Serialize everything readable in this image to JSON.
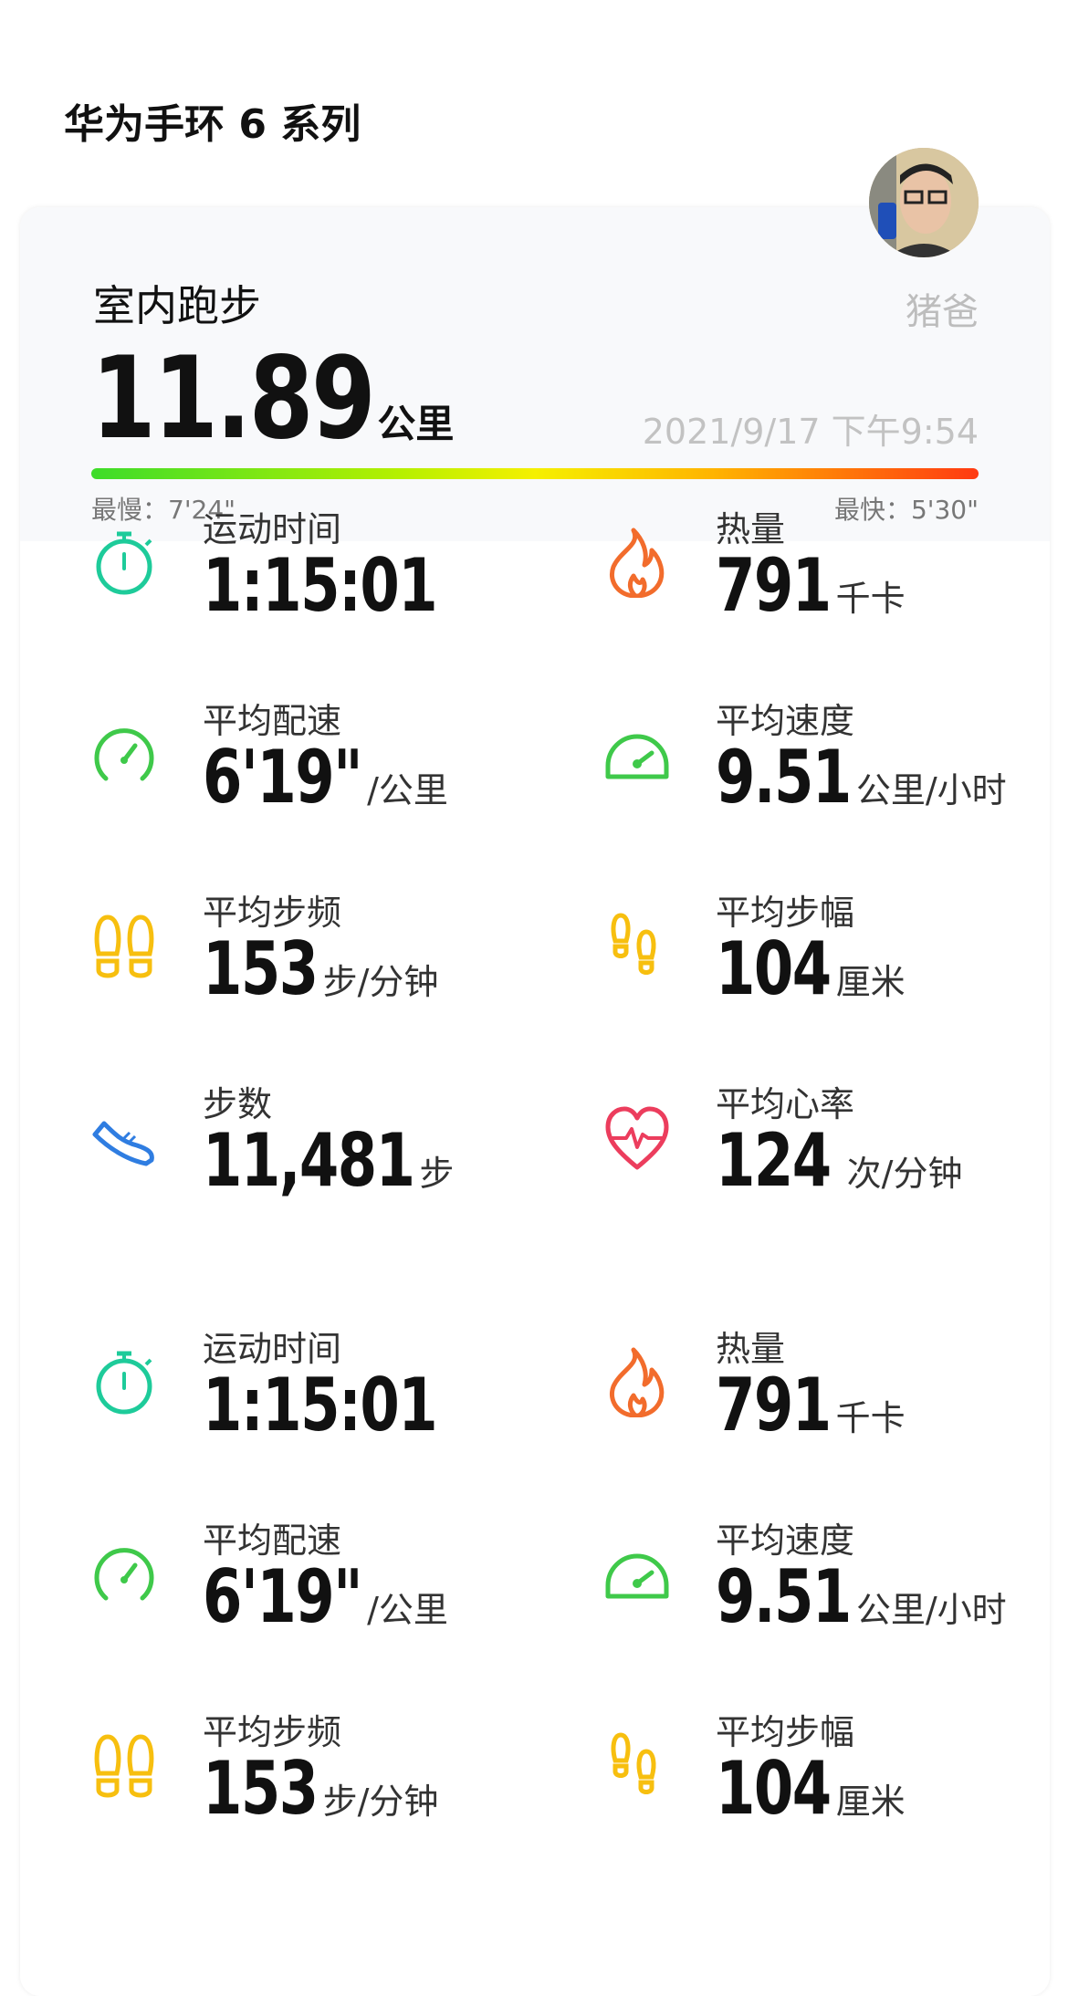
{
  "header": {
    "title": "华为手环 6 系列"
  },
  "summary": {
    "sport": "室内跑步",
    "user": "猪爸",
    "distance": "11.89",
    "distance_unit": "公里",
    "datetime": "2021/9/17 下午9:54",
    "slowest": "最慢：7'24\"",
    "fastest": "最快：5'30\""
  },
  "colors": {
    "timer": "#1ecb9a",
    "fire": "#f26c2c",
    "pace": "#3fc94a",
    "foot": "#f7bf0f",
    "shoe": "#2f7de1",
    "heart": "#ec3d5d"
  },
  "stats": [
    {
      "label": "运动时间",
      "value": "1:15:01",
      "unit": "",
      "icon": "stopwatch-icon"
    },
    {
      "label": "热量",
      "value": "791",
      "unit": "千卡",
      "icon": "flame-icon"
    },
    {
      "label": "平均配速",
      "value": "6'19\"",
      "unit": "/公里",
      "icon": "pace-gauge-icon"
    },
    {
      "label": "平均速度",
      "value": "9.51",
      "unit": "公里/小时",
      "icon": "speedometer-icon"
    },
    {
      "label": "平均步频",
      "value": "153",
      "unit": "步/分钟",
      "icon": "footprints-icon"
    },
    {
      "label": "平均步幅",
      "value": "104",
      "unit": "厘米",
      "icon": "footprints-stride-icon"
    },
    {
      "label": "步数",
      "value": "11,481",
      "unit": "步",
      "icon": "shoe-icon"
    },
    {
      "label": "平均心率",
      "value": "124",
      "unit": " 次/分钟",
      "icon": "heart-rate-icon"
    },
    {
      "label": "运动时间",
      "value": "1:15:01",
      "unit": "",
      "icon": "stopwatch-icon"
    },
    {
      "label": "热量",
      "value": "791",
      "unit": "千卡",
      "icon": "flame-icon"
    },
    {
      "label": "平均配速",
      "value": "6'19\"",
      "unit": "/公里",
      "icon": "pace-gauge-icon"
    },
    {
      "label": "平均速度",
      "value": "9.51",
      "unit": "公里/小时",
      "icon": "speedometer-icon"
    },
    {
      "label": "平均步频",
      "value": "153",
      "unit": "步/分钟",
      "icon": "footprints-icon"
    },
    {
      "label": "平均步幅",
      "value": "104",
      "unit": "厘米",
      "icon": "footprints-stride-icon"
    }
  ]
}
